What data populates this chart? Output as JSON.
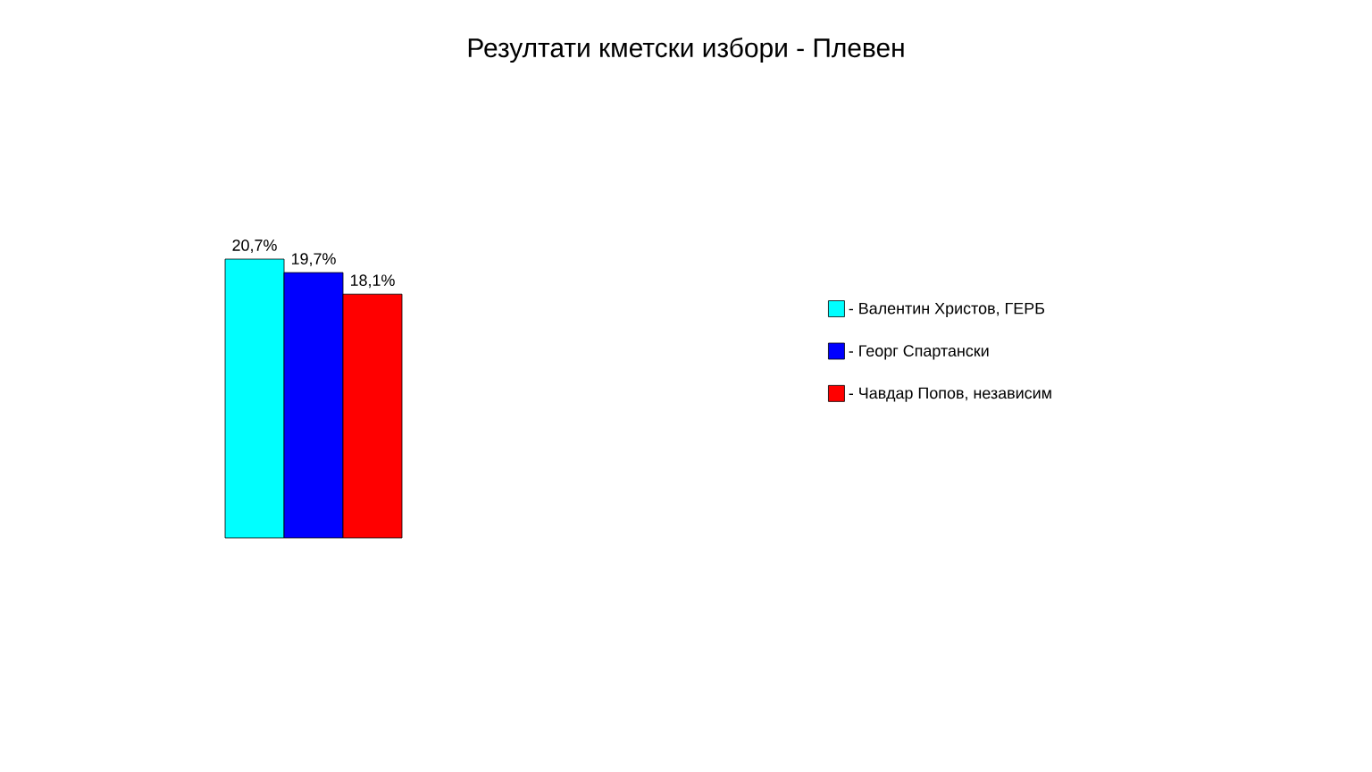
{
  "chart_data": {
    "type": "bar",
    "title": "Резултати кметски избори - Плевен",
    "categories": [
      null
    ],
    "series": [
      {
        "name": "- Валентин Христов, ГЕРБ",
        "color": "#00ffff",
        "values": [
          20.7
        ],
        "value_labels": [
          "20,7%"
        ]
      },
      {
        "name": "- Георг Спартански",
        "color": "#0000ff",
        "values": [
          19.7
        ],
        "value_labels": [
          "19,7%"
        ]
      },
      {
        "name": "- Чавдар Попов, независим",
        "color": "#ff0000",
        "values": [
          18.1
        ],
        "value_labels": [
          "18,1%"
        ]
      }
    ],
    "legend": "right"
  }
}
